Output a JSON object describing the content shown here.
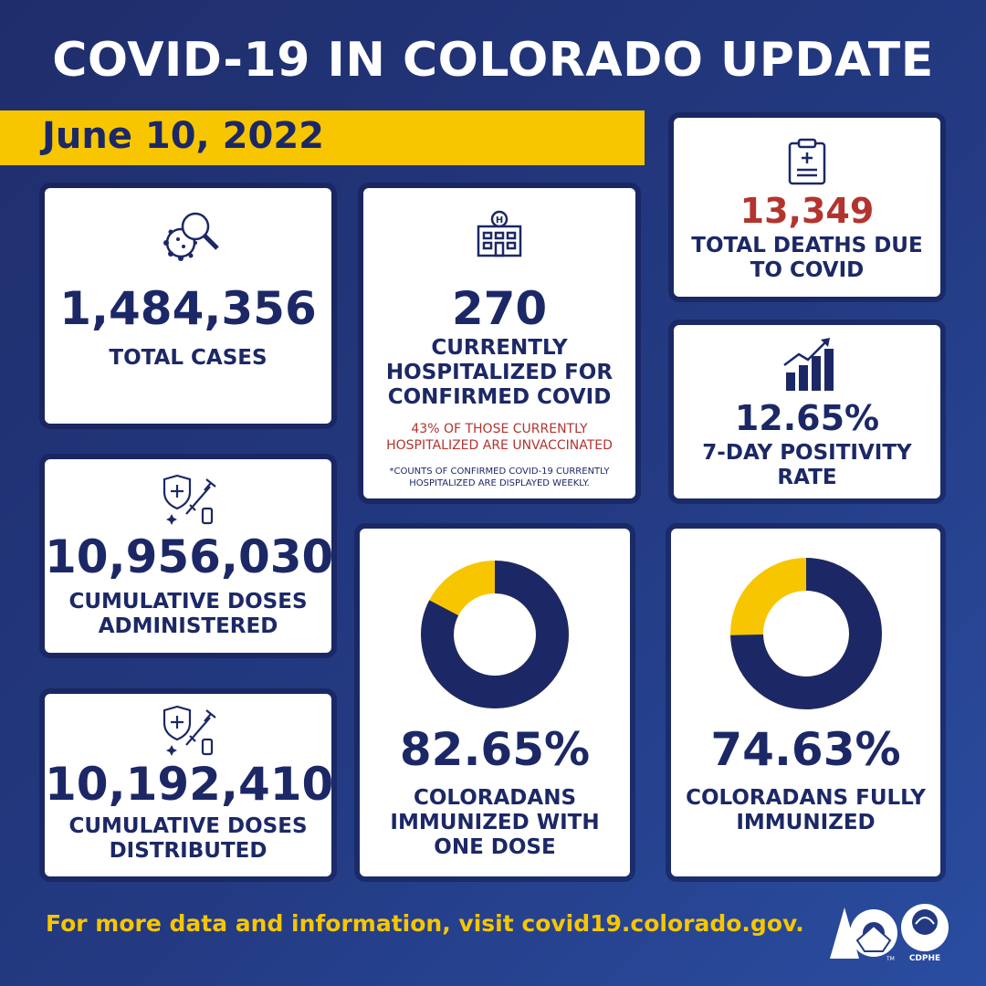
{
  "header": {
    "title": "COVID-19 IN COLORADO UPDATE",
    "date": "June 10, 2022"
  },
  "cases": {
    "value": "1,484,356",
    "label": "TOTAL CASES"
  },
  "hospitalized": {
    "value": "270",
    "label_lines": [
      "CURRENTLY",
      "HOSPITALIZED FOR",
      "CONFIRMED COVID"
    ],
    "note_lines": [
      "43% OF THOSE CURRENTLY",
      "HOSPITALIZED ARE UNVACCINATED"
    ],
    "footnote_lines": [
      "*COUNTS OF CONFIRMED COVID-19 CURRENTLY",
      "HOSPITALIZED ARE DISPLAYED WEEKLY."
    ]
  },
  "deaths": {
    "value": "13,349",
    "label_lines": [
      "TOTAL DEATHS DUE",
      "TO COVID"
    ]
  },
  "positivity": {
    "value": "12.65%",
    "label_lines": [
      "7-DAY POSITIVITY",
      "RATE"
    ]
  },
  "doses_administered": {
    "value": "10,956,030",
    "label_lines": [
      "CUMULATIVE DOSES",
      "ADMINISTERED"
    ]
  },
  "doses_distributed": {
    "value": "10,192,410",
    "label_lines": [
      "CUMULATIVE DOSES",
      "DISTRIBUTED"
    ]
  },
  "one_dose": {
    "value": "82.65%",
    "percent": 82.65,
    "label_lines": [
      "COLORADANS",
      "IMMUNIZED WITH",
      "ONE DOSE"
    ]
  },
  "fully": {
    "value": "74.63%",
    "percent": 74.63,
    "label_lines": [
      "COLORADANS FULLY",
      "IMMUNIZED"
    ]
  },
  "footer": {
    "text": "For more data and information, visit covid19.colorado.gov."
  },
  "logos": {
    "cdphe_text": "CDPHE",
    "tm_text": "TM"
  },
  "colors": {
    "navy": "#1c2866",
    "yellow": "#f7c600",
    "red": "#b3342f"
  },
  "icons": [
    "virus-search-icon",
    "hospital-icon",
    "clipboard-icon",
    "chart-up-icon",
    "vaccine-icon"
  ]
}
